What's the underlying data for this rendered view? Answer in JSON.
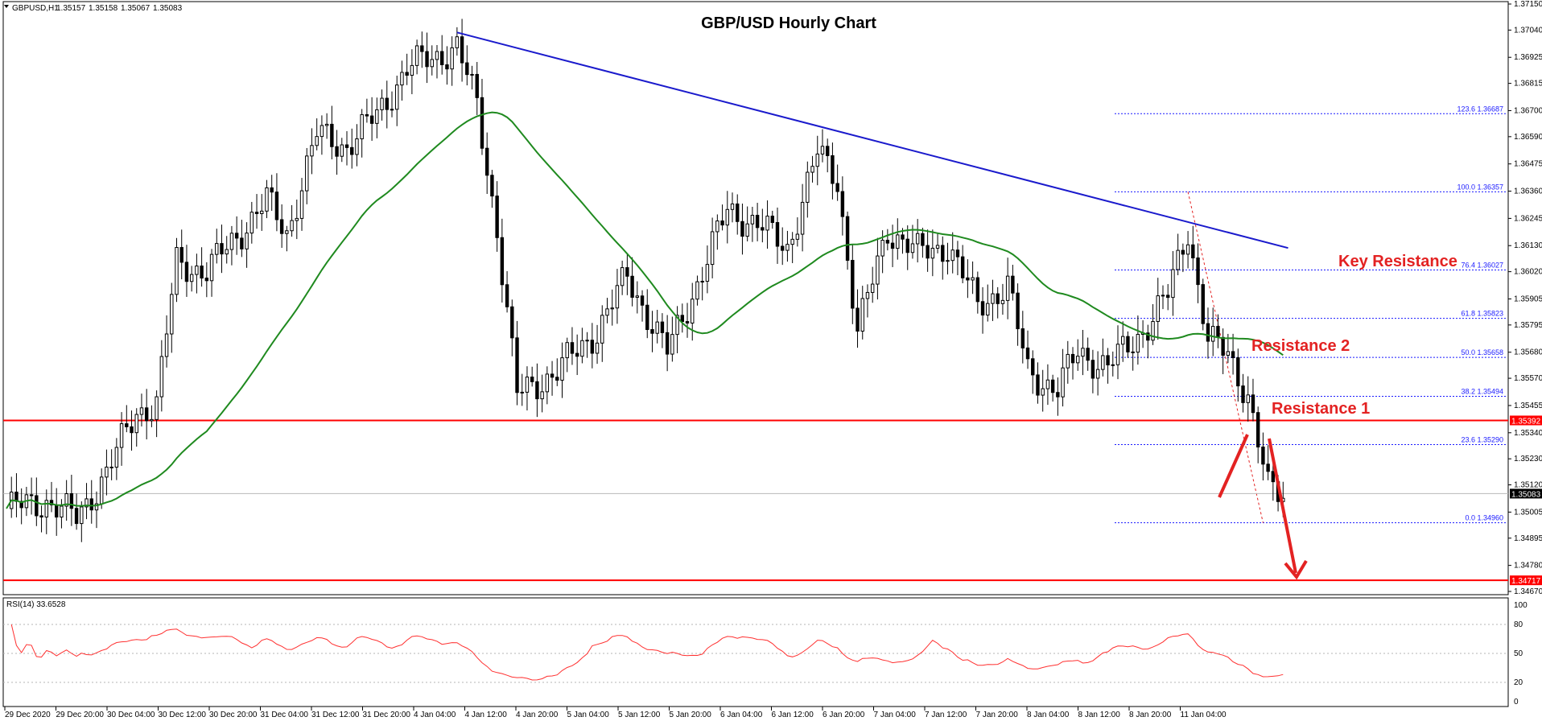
{
  "chart_data": {
    "type": "candlestick",
    "title": "GBP/USD Hourly Chart",
    "header": {
      "symbol": "GBPUSD,H1",
      "ohlc": [
        "1.35157",
        "1.35158",
        "1.35067",
        "1.35083"
      ]
    },
    "price_axis": {
      "ylim": [
        1.3467,
        1.3715
      ],
      "ticks": [
        "1.37150",
        "1.37040",
        "1.36925",
        "1.36815",
        "1.36700",
        "1.36590",
        "1.36475",
        "1.36360",
        "1.36245",
        "1.36130",
        "1.36020",
        "1.35905",
        "1.35795",
        "1.35680",
        "1.35570",
        "1.35455",
        "1.35340",
        "1.35230",
        "1.35120",
        "1.35005",
        "1.34895",
        "1.34780",
        "1.34670"
      ]
    },
    "time_axis": {
      "labels": [
        "29 Dec 2020",
        "29 Dec 20:00",
        "30 Dec 04:00",
        "30 Dec 12:00",
        "30 Dec 20:00",
        "31 Dec 04:00",
        "31 Dec 12:00",
        "31 Dec 20:00",
        "4 Jan 04:00",
        "4 Jan 12:00",
        "4 Jan 20:00",
        "5 Jan 04:00",
        "5 Jan 12:00",
        "5 Jan 20:00",
        "6 Jan 04:00",
        "6 Jan 12:00",
        "6 Jan 20:00",
        "7 Jan 04:00",
        "7 Jan 12:00",
        "7 Jan 20:00",
        "8 Jan 04:00",
        "8 Jan 12:00",
        "8 Jan 20:00",
        "11 Jan 04:00"
      ]
    },
    "current_price": {
      "value": 1.35083,
      "label": "1.35083"
    },
    "horizontal_lines": [
      {
        "value": 1.35392,
        "label": "1.35392",
        "color": "#ff0000"
      },
      {
        "value": 1.34717,
        "label": "1.34717",
        "color": "#ff0000"
      }
    ],
    "fibonacci": {
      "color": "#1a1aff",
      "levels": [
        {
          "label": "123.6",
          "value": 1.36687,
          "value_label": "1.36687"
        },
        {
          "label": "100.0",
          "value": 1.36357,
          "value_label": "1.36357"
        },
        {
          "label": "76.4",
          "value": 1.36027,
          "value_label": "1.36027"
        },
        {
          "label": "61.8",
          "value": 1.35823,
          "value_label": "1.35823"
        },
        {
          "label": "50.0",
          "value": 1.35658,
          "value_label": "1.35658"
        },
        {
          "label": "38.2",
          "value": 1.35494,
          "value_label": "1.35494"
        },
        {
          "label": "23.6",
          "value": 1.3529,
          "value_label": "1.35290"
        },
        {
          "label": "0.0",
          "value": 1.3496,
          "value_label": "1.34960"
        }
      ]
    },
    "trendline": {
      "color": "#1a1acc",
      "from": {
        "bar": 90,
        "price": 1.3703
      },
      "to": {
        "bar": 256,
        "price": 1.3612
      }
    },
    "moving_average_color": "#1f8a1f",
    "annotations": [
      {
        "text": "Key Resistance"
      },
      {
        "text": "Resistance 2"
      },
      {
        "text": "Resistance 1"
      }
    ],
    "annotation_color": "#e32222",
    "rsi": {
      "label": "RSI(14) 33.6528",
      "ylim": [
        0,
        100
      ],
      "ticks": [
        "100",
        "80",
        "50",
        "20",
        "0"
      ],
      "levels": [
        80,
        50,
        20
      ],
      "color": "#ff3030"
    },
    "candle_colors": {
      "up": "#ffffff",
      "down": "#000000",
      "wick": "#000000"
    }
  }
}
